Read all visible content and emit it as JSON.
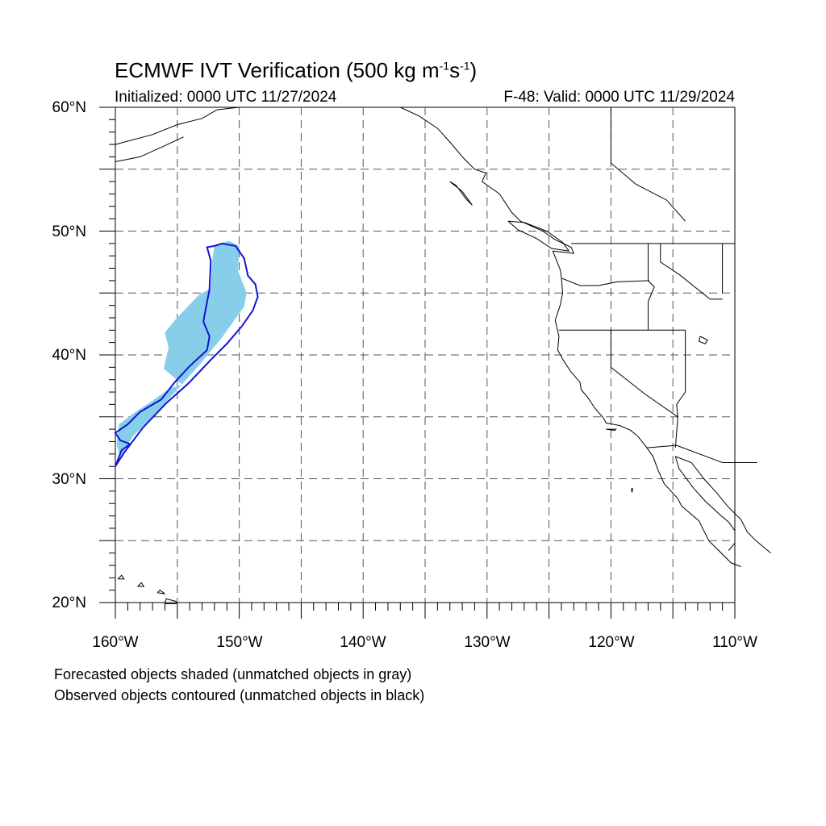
{
  "header": {
    "title_main": "ECMWF IVT Verification (500 kg m",
    "title_exp1": "-1",
    "title_mid": "s",
    "title_exp2": "-1",
    "title_end": ")",
    "initialized": "Initialized: 0000 UTC 11/27/2024",
    "valid": "F-48: Valid: 0000 UTC 11/29/2024"
  },
  "axes": {
    "lat_labels": [
      "60°N",
      "50°N",
      "40°N",
      "30°N",
      "20°N"
    ],
    "lon_labels": [
      "160°W",
      "150°W",
      "140°W",
      "130°W",
      "120°W",
      "110°W"
    ]
  },
  "map": {
    "extent": {
      "lon_min": -160,
      "lon_max": -110,
      "lat_min": 20,
      "lat_max": 60
    },
    "gridlines": "dashed every 5°",
    "forecast_object": {
      "matched": true,
      "color": "#87ceeb",
      "outline": [
        [
          -152.0,
          48.9
        ],
        [
          -150.8,
          49.2
        ],
        [
          -150.0,
          48.8
        ],
        [
          -150.1,
          46.8
        ],
        [
          -149.4,
          45.0
        ],
        [
          -149.6,
          43.9
        ],
        [
          -151.4,
          41.4
        ],
        [
          -153.3,
          39.1
        ],
        [
          -155.0,
          37.2
        ],
        [
          -157.0,
          35.0
        ],
        [
          -158.6,
          33.4
        ],
        [
          -159.6,
          31.7
        ],
        [
          -159.9,
          32.8
        ],
        [
          -159.7,
          34.4
        ],
        [
          -158.5,
          35.3
        ],
        [
          -157.0,
          36.3
        ],
        [
          -155.6,
          37.3
        ],
        [
          -154.6,
          37.6
        ],
        [
          -156.1,
          38.9
        ],
        [
          -155.7,
          40.6
        ],
        [
          -156.0,
          41.8
        ],
        [
          -155.2,
          42.8
        ],
        [
          -153.3,
          44.8
        ],
        [
          -152.3,
          45.4
        ],
        [
          -152.2,
          47.4
        ]
      ]
    },
    "observed_object": {
      "matched": true,
      "color": "#1414d2",
      "outline": [
        [
          -152.0,
          48.8
        ],
        [
          -151.4,
          49.0
        ],
        [
          -150.3,
          48.8
        ],
        [
          -149.6,
          47.8
        ],
        [
          -149.3,
          46.4
        ],
        [
          -148.7,
          45.7
        ],
        [
          -148.5,
          44.7
        ],
        [
          -148.9,
          43.6
        ],
        [
          -149.8,
          42.3
        ],
        [
          -151.0,
          40.9
        ],
        [
          -152.3,
          39.6
        ],
        [
          -154.1,
          37.7
        ],
        [
          -155.9,
          36.1
        ],
        [
          -157.8,
          34.1
        ],
        [
          -159.3,
          32.1
        ],
        [
          -160.0,
          31.0
        ],
        [
          -159.5,
          32.3
        ],
        [
          -158.8,
          32.8
        ],
        [
          -159.6,
          33.1
        ],
        [
          -160.0,
          33.7
        ],
        [
          -159.0,
          34.4
        ],
        [
          -158.0,
          35.4
        ],
        [
          -156.3,
          36.4
        ],
        [
          -155.2,
          37.8
        ],
        [
          -154.0,
          39.1
        ],
        [
          -152.6,
          40.4
        ],
        [
          -152.4,
          41.5
        ],
        [
          -152.9,
          42.7
        ],
        [
          -152.4,
          45.3
        ],
        [
          -152.3,
          47.6
        ],
        [
          -152.6,
          48.7
        ]
      ]
    }
  },
  "notes": {
    "forecast": "Forecasted objects shaded (unmatched objects in gray)",
    "observed": "Observed objects contoured (unmatched objects in black)"
  }
}
